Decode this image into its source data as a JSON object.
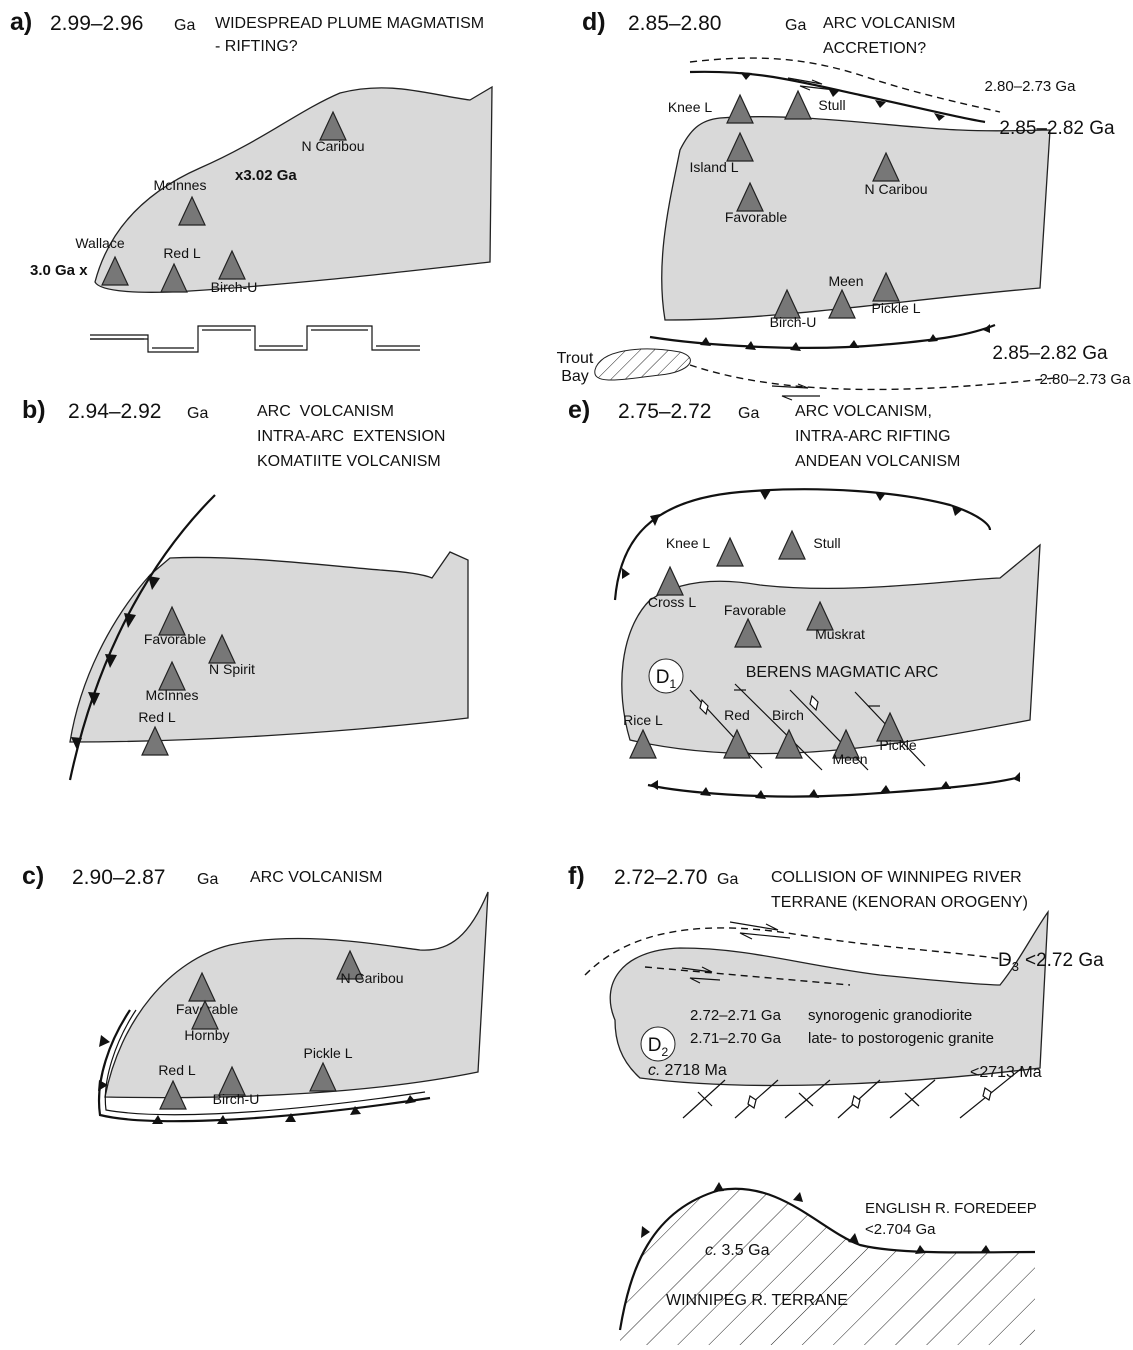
{
  "panels": [
    {
      "letter": "a)",
      "age": "2.99–2.96",
      "unit": "Ga",
      "title": [
        "WIDESPREAD PLUME MAGMATISM",
        "- RIFTING?"
      ],
      "sites": [
        "N Caribou",
        "McInnes",
        "Wallace",
        "Red L",
        "Birch-U"
      ],
      "notes": [
        "x3.02 Ga",
        "3.0 Ga x"
      ]
    },
    {
      "letter": "b)",
      "age": "2.94–2.92",
      "unit": "Ga",
      "title": [
        "ARC  VOLCANISM",
        "INTRA-ARC  EXTENSION",
        "KOMATIITE VOLCANISM"
      ],
      "sites": [
        "Favorable",
        "N Spirit",
        "McInnes",
        "Red L"
      ]
    },
    {
      "letter": "c)",
      "age": "2.90–2.87",
      "unit": "Ga",
      "title": [
        "ARC VOLCANISM"
      ],
      "sites": [
        "N Caribou",
        "Favorable",
        "Hornby",
        "Red L",
        "Birch-U",
        "Pickle L"
      ]
    },
    {
      "letter": "d)",
      "age": "2.85–2.80",
      "unit": "Ga",
      "title": [
        "ARC VOLCANISM",
        "ACCRETION?"
      ],
      "sites": [
        "Knee L",
        "Stull",
        "Island L",
        "N Caribou",
        "Favorable",
        "Meen",
        "Pickle L",
        "Birch-U"
      ],
      "notes": [
        "2.80–2.73 Ga",
        "2.85–2.82 Ga",
        "2.85–2.82 Ga",
        "2.80–2.73 Ga",
        "Trout",
        "Bay"
      ]
    },
    {
      "letter": "e)",
      "age": "2.75–2.72",
      "unit": "Ga",
      "title": [
        "ARC VOLCANISM,",
        "INTRA-ARC RIFTING",
        "ANDEAN VOLCANISM"
      ],
      "sites": [
        "Knee L",
        "Stull",
        "Cross L",
        "Favorable",
        "Muskrat",
        "Rice L",
        "Red",
        "Birch",
        "Meen",
        "Pickle"
      ],
      "notes": [
        "BERENS MAGMATIC ARC"
      ],
      "deformation": {
        "letter": "D",
        "sub": "1"
      }
    },
    {
      "letter": "f)",
      "age": "2.72–2.70",
      "unit": "Ga",
      "title": [
        "COLLISION OF WINNIPEG RIVER",
        "TERRANE (KENORAN OROGENY)"
      ],
      "phase": {
        "letter": "D",
        "sub": "3",
        "age": "<2.72 Ga"
      },
      "deformation": {
        "letter": "D",
        "sub": "2"
      },
      "intrusions": [
        "2.72–2.71 Ga",
        "synorogenic granodiorite",
        "2.71–2.70 Ga",
        "late- to postorogenic granite"
      ],
      "approx": [
        {
          "prefix": "c.",
          "text": "2718 Ma"
        },
        {
          "prefix": "c.",
          "text": "3.5 Ga"
        }
      ],
      "notes": [
        "<2713 Ma",
        "ENGLISH R. FOREDEEP",
        "<2.704 Ga",
        "WINNIPEG R. TERRANE"
      ]
    }
  ]
}
